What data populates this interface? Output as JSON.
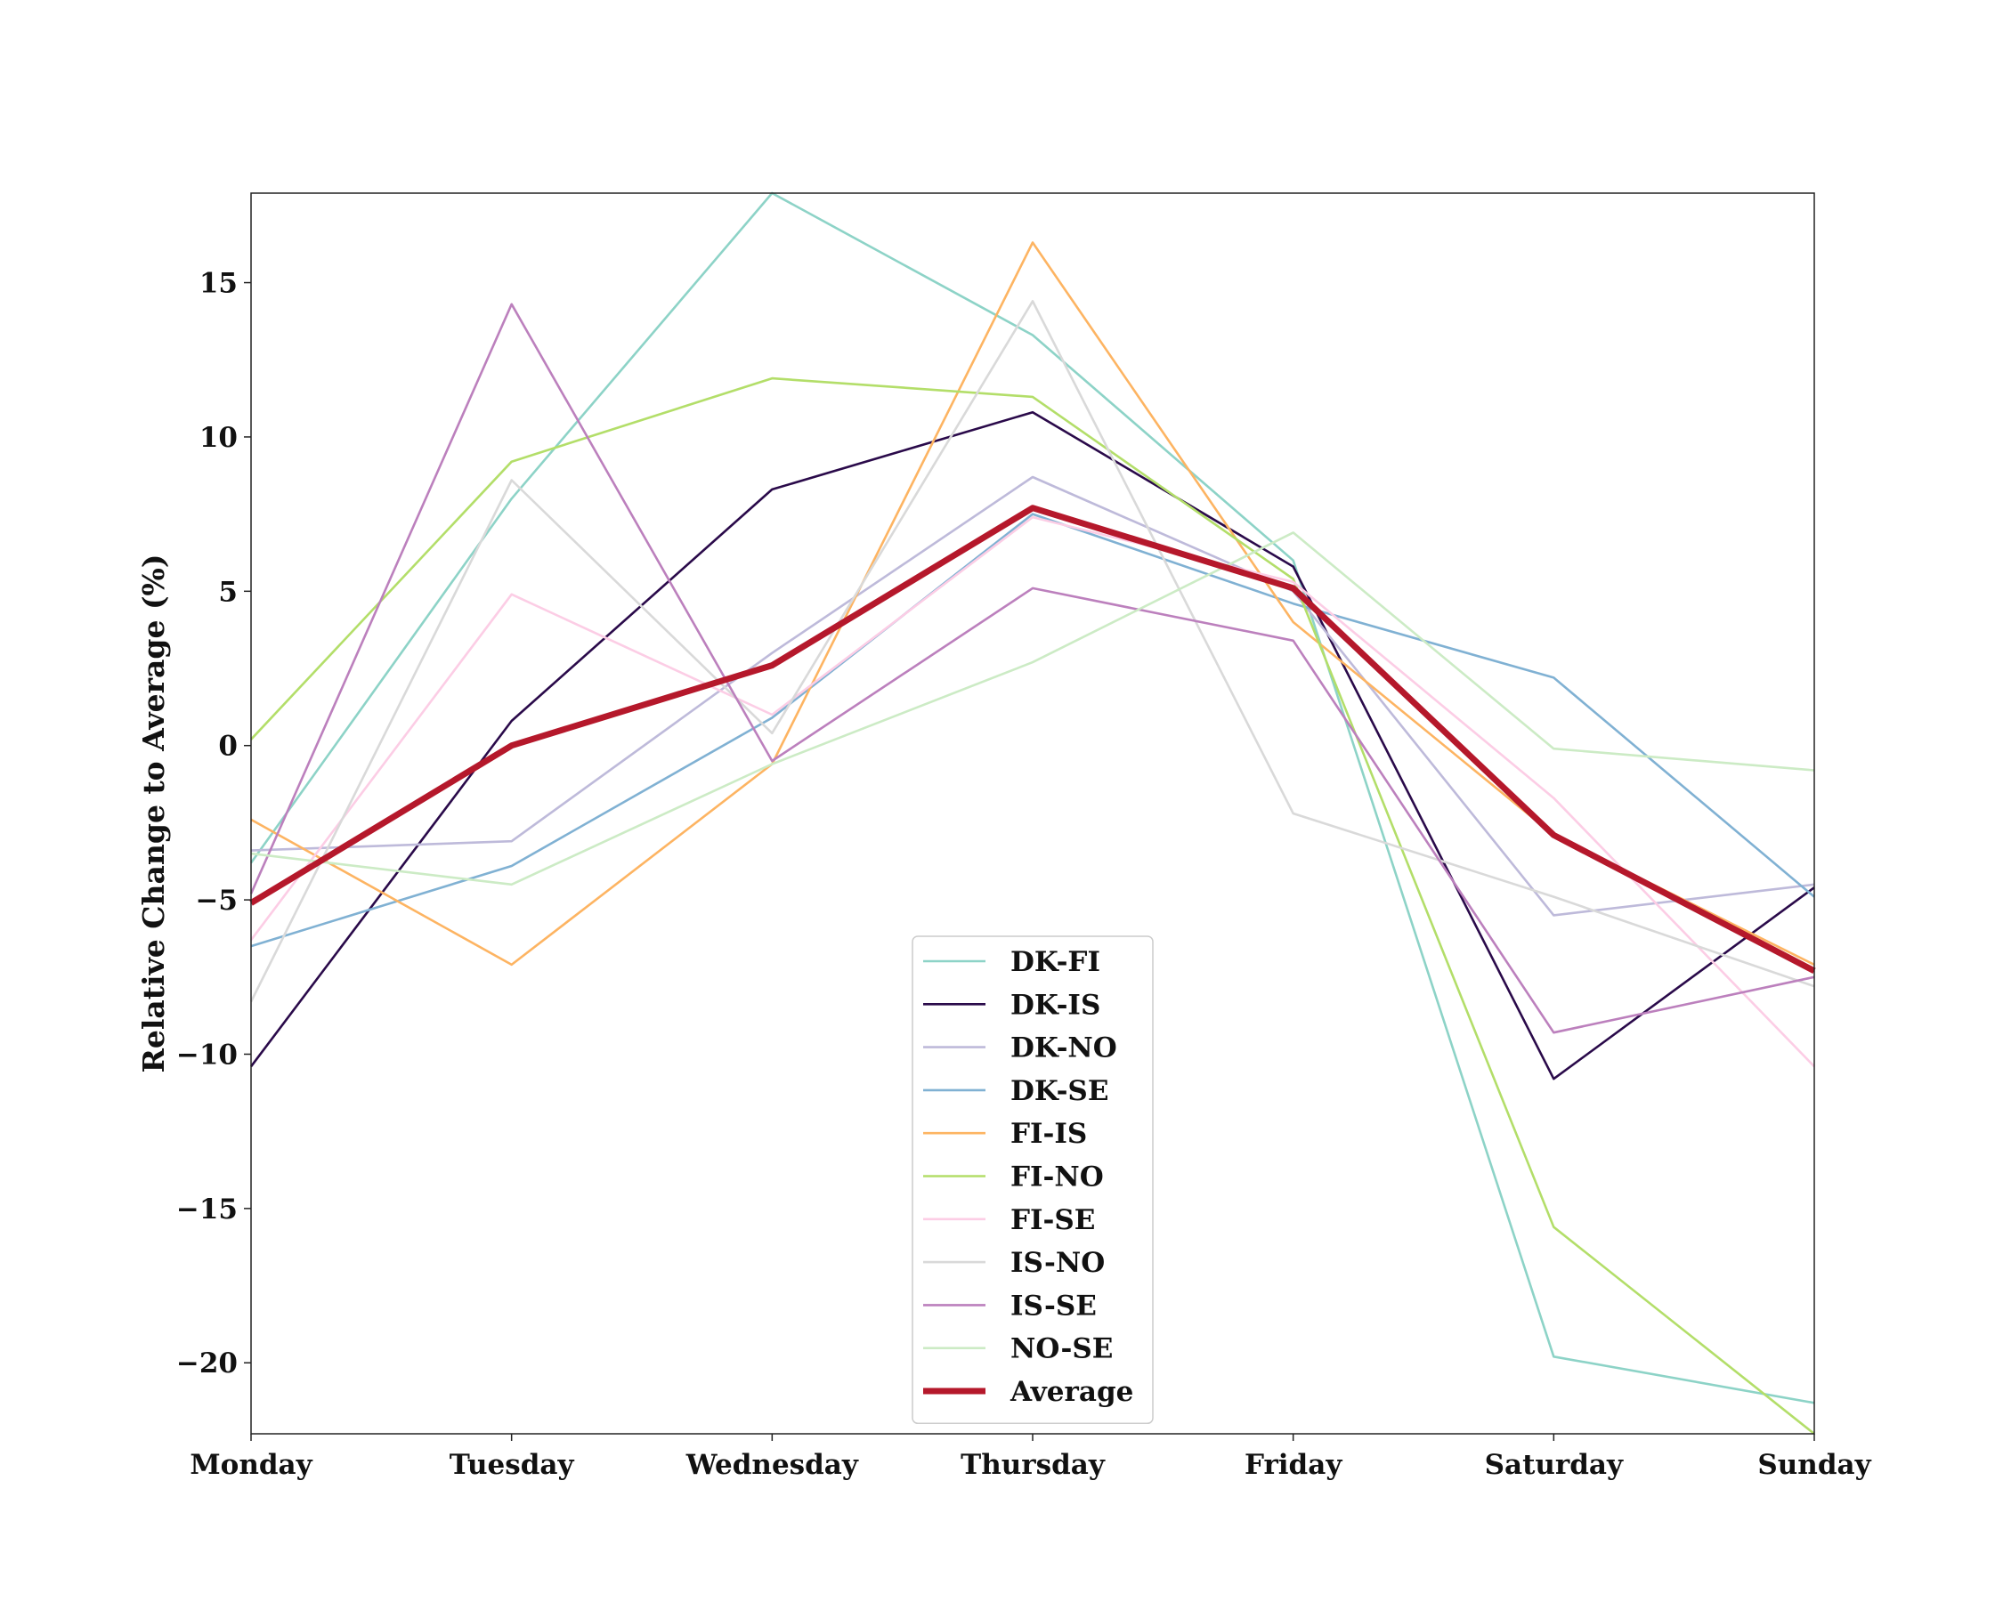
{
  "chart_data": {
    "type": "line",
    "title": "",
    "xlabel": "",
    "ylabel": "Relative Change to Average (%)",
    "categories": [
      "Monday",
      "Tuesday",
      "Wednesday",
      "Thursday",
      "Friday",
      "Saturday",
      "Sunday"
    ],
    "ylim": [
      -22.3,
      17.9
    ],
    "yticks": [
      15,
      10,
      5,
      0,
      -5,
      -10,
      -15,
      -20
    ],
    "ytick_labels": [
      "15",
      "10",
      "5",
      "0",
      "−5",
      "−10",
      "−15",
      "−20"
    ],
    "grid": false,
    "legend_position": "bottom-center",
    "series": [
      {
        "name": "DK-FI",
        "color": "#8dd3c7",
        "values": [
          -3.8,
          8.0,
          17.9,
          13.3,
          6.0,
          -19.8,
          -21.3
        ]
      },
      {
        "name": "DK-IS",
        "color": "#2a0a4a",
        "values": [
          -10.4,
          0.8,
          8.3,
          10.8,
          5.8,
          -10.8,
          -4.6
        ]
      },
      {
        "name": "DK-NO",
        "color": "#bebada",
        "values": [
          -3.4,
          -3.1,
          3.0,
          8.7,
          5.0,
          -5.5,
          -4.5
        ]
      },
      {
        "name": "DK-SE",
        "color": "#80b1d3",
        "values": [
          -6.5,
          -3.9,
          0.9,
          7.5,
          4.6,
          2.2,
          -4.9
        ]
      },
      {
        "name": "FI-IS",
        "color": "#fdb462",
        "values": [
          -2.4,
          -7.1,
          -0.6,
          16.3,
          4.0,
          -2.9,
          -7.1
        ]
      },
      {
        "name": "FI-NO",
        "color": "#b3de69",
        "values": [
          0.2,
          9.2,
          11.9,
          11.3,
          5.4,
          -15.6,
          -22.3
        ]
      },
      {
        "name": "FI-SE",
        "color": "#fccde5",
        "values": [
          -6.3,
          4.9,
          1.0,
          7.4,
          5.3,
          -1.7,
          -10.4
        ]
      },
      {
        "name": "IS-NO",
        "color": "#d9d9d9",
        "values": [
          -8.3,
          8.6,
          0.4,
          14.4,
          -2.2,
          -4.9,
          -7.8
        ]
      },
      {
        "name": "IS-SE",
        "color": "#bc80bd",
        "values": [
          -4.8,
          14.3,
          -0.5,
          5.1,
          3.4,
          -9.3,
          -7.5
        ]
      },
      {
        "name": "NO-SE",
        "color": "#ccebc5",
        "values": [
          -3.5,
          -4.5,
          -0.6,
          2.7,
          6.9,
          -0.1,
          -0.8
        ]
      },
      {
        "name": "Average",
        "color": "#b5182b",
        "values": [
          -5.1,
          0.0,
          2.6,
          7.7,
          5.1,
          -2.9,
          -7.3
        ]
      }
    ]
  }
}
